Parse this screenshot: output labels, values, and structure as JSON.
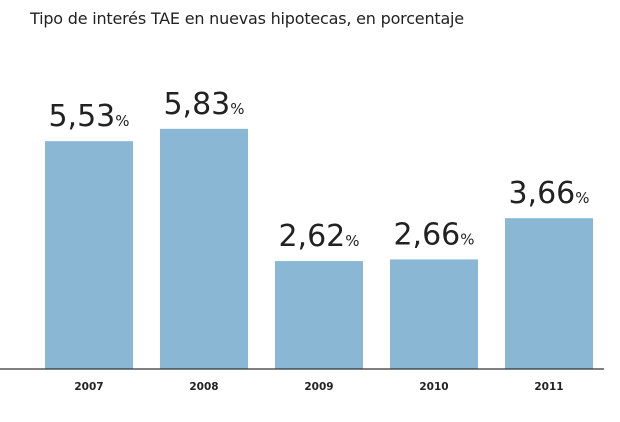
{
  "chart_data": {
    "type": "bar",
    "title": "Tipo de interés TAE en nuevas hipotecas, en porcentaje",
    "categories": [
      "2007",
      "2008",
      "2009",
      "2010",
      "2011"
    ],
    "values": [
      5.53,
      5.83,
      2.62,
      2.66,
      3.66
    ],
    "data_labels": [
      "5,53",
      "5,83",
      "2,62",
      "2,66",
      "3,66"
    ],
    "unit": "%",
    "xlabel": "",
    "ylabel": "",
    "ylim": [
      0,
      6
    ],
    "grid": false,
    "legend": "none",
    "bar_color": "#8ab8d4"
  }
}
